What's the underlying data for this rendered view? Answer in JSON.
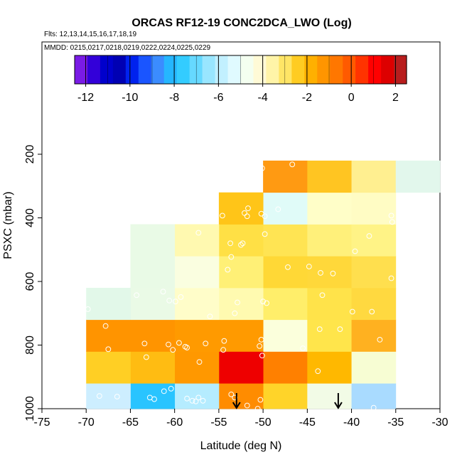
{
  "chart_data": {
    "type": "heatmap",
    "title": "ORCAS RF12-19 CONC2DCA_LWO (Log)",
    "flights_label": "Flts: 12,13,14,15,16,17,18,19",
    "dates_label": "MMDD: 0215,0217,0218,0219,0222,0224,0225,0229",
    "xlabel": "Latitude (deg N)",
    "ylabel": "PSXC (mbar)",
    "xlim": [
      -75,
      -30
    ],
    "ylim": [
      1000,
      50
    ],
    "x_ticks": [
      -75,
      -70,
      -65,
      -60,
      -55,
      -50,
      -45,
      -40,
      -35,
      -30
    ],
    "x_tick_labels": [
      "-75",
      "-70",
      "-65",
      "-60",
      "-55",
      "-50",
      "-45",
      "-40",
      "-35",
      "-30"
    ],
    "y_ticks": [
      200,
      400,
      600,
      800,
      1000
    ],
    "y_tick_labels": [
      "200",
      "400",
      "600",
      "800",
      "1000"
    ],
    "colorbar": {
      "range": [
        -12.5,
        2.5
      ],
      "ticks": [
        -12,
        -10,
        -8,
        -6,
        -4,
        -2,
        0,
        2
      ],
      "tick_labels": [
        "-12",
        "-10",
        "-8",
        "-6",
        "-4",
        "-2",
        "0",
        "2"
      ],
      "colors": [
        "#7a1be6",
        "#3300d9",
        "#0000cc",
        "#0000b3",
        "#0022ee",
        "#1a55ff",
        "#3b8cff",
        "#25b6ff",
        "#33ccff",
        "#66d9ff",
        "#99e6ff",
        "#c2f0ff",
        "#e0faff",
        "#f4fff0",
        "#fffad6",
        "#fff4a8",
        "#ffe566",
        "#ffcc22",
        "#ffb000",
        "#ff9500",
        "#ff7700",
        "#ff5a00",
        "#ff3300",
        "#ff0000",
        "#dd0000",
        "#b81d1d"
      ]
    },
    "cells": [
      {
        "x": [
          -50,
          -45
        ],
        "y": [
          920,
          1000
        ],
        "v": -2.0,
        "color": "#ffd429"
      },
      {
        "x": [
          -50,
          -45
        ],
        "y": [
          820,
          920
        ],
        "v": -1.5,
        "color": "#ff8000"
      },
      {
        "x": [
          -50,
          -45
        ],
        "y": [
          720,
          820
        ],
        "v": -4.0,
        "color": "#fbffdc"
      },
      {
        "x": [
          -50,
          -45
        ],
        "y": [
          620,
          720
        ],
        "v": -2.8,
        "color": "#ffee6a"
      },
      {
        "x": [
          -50,
          -45
        ],
        "y": [
          520,
          620
        ],
        "v": -2.5,
        "color": "#ffd836"
      },
      {
        "x": [
          -50,
          -45
        ],
        "y": [
          420,
          520
        ],
        "v": -2.7,
        "color": "#ffe453"
      },
      {
        "x": [
          -50,
          -45
        ],
        "y": [
          320,
          420
        ],
        "v": -4.8,
        "color": "#e0fbf8"
      },
      {
        "x": [
          -50,
          -45
        ],
        "y": [
          220,
          320
        ],
        "v": -1.5,
        "color": "#ff9a12"
      },
      {
        "x": [
          -55,
          -50
        ],
        "y": [
          920,
          1000
        ],
        "v": -1.5,
        "color": "#ff8c00"
      },
      {
        "x": [
          -55,
          -50
        ],
        "y": [
          820,
          920
        ],
        "v": 0.2,
        "color": "#ee0000"
      },
      {
        "x": [
          -55,
          -50
        ],
        "y": [
          720,
          820
        ],
        "v": -1.8,
        "color": "#ff9a00"
      },
      {
        "x": [
          -55,
          -50
        ],
        "y": [
          620,
          720
        ],
        "v": -3.3,
        "color": "#fffab0"
      },
      {
        "x": [
          -55,
          -50
        ],
        "y": [
          520,
          620
        ],
        "v": -2.9,
        "color": "#fff076"
      },
      {
        "x": [
          -55,
          -50
        ],
        "y": [
          420,
          520
        ],
        "v": -2.6,
        "color": "#ffe045"
      },
      {
        "x": [
          -55,
          -50
        ],
        "y": [
          320,
          420
        ],
        "v": -2.3,
        "color": "#ffc518"
      },
      {
        "x": [
          -60,
          -55
        ],
        "y": [
          920,
          1000
        ],
        "v": -6.5,
        "color": "#b5ecff"
      },
      {
        "x": [
          -60,
          -55
        ],
        "y": [
          820,
          920
        ],
        "v": -1.7,
        "color": "#ff9800"
      },
      {
        "x": [
          -60,
          -55
        ],
        "y": [
          720,
          820
        ],
        "v": -1.8,
        "color": "#ff9a00"
      },
      {
        "x": [
          -60,
          -55
        ],
        "y": [
          620,
          720
        ],
        "v": -3.6,
        "color": "#fffdc9"
      },
      {
        "x": [
          -60,
          -55
        ],
        "y": [
          520,
          620
        ],
        "v": -3.7,
        "color": "#fafee0"
      },
      {
        "x": [
          -60,
          -55
        ],
        "y": [
          420,
          520
        ],
        "v": -3.2,
        "color": "#fff9b0"
      },
      {
        "x": [
          -65,
          -60
        ],
        "y": [
          920,
          1000
        ],
        "v": -7.5,
        "color": "#29c4ff"
      },
      {
        "x": [
          -65,
          -60
        ],
        "y": [
          820,
          920
        ],
        "v": -2.1,
        "color": "#ffbc12"
      },
      {
        "x": [
          -65,
          -60
        ],
        "y": [
          720,
          820
        ],
        "v": -1.6,
        "color": "#ff9400"
      },
      {
        "x": [
          -65,
          -60
        ],
        "y": [
          620,
          720
        ],
        "v": -4.6,
        "color": "#eafae6"
      },
      {
        "x": [
          -65,
          -60
        ],
        "y": [
          520,
          620
        ],
        "v": -4.7,
        "color": "#e9fae6"
      },
      {
        "x": [
          -65,
          -60
        ],
        "y": [
          420,
          520
        ],
        "v": -4.8,
        "color": "#e9fae6"
      },
      {
        "x": [
          -70,
          -65
        ],
        "y": [
          920,
          1000
        ],
        "v": -6.0,
        "color": "#cdeeff"
      },
      {
        "x": [
          -70,
          -65
        ],
        "y": [
          820,
          920
        ],
        "v": -2.4,
        "color": "#ffcf24"
      },
      {
        "x": [
          -70,
          -65
        ],
        "y": [
          720,
          820
        ],
        "v": -1.6,
        "color": "#ff9400"
      },
      {
        "x": [
          -70,
          -65
        ],
        "y": [
          620,
          720
        ],
        "v": -4.9,
        "color": "#e2f8e9"
      },
      {
        "x": [
          -45,
          -40
        ],
        "y": [
          920,
          1000
        ],
        "v": -4.4,
        "color": "#f2fbe6"
      },
      {
        "x": [
          -45,
          -40
        ],
        "y": [
          820,
          920
        ],
        "v": -2.0,
        "color": "#ffb800"
      },
      {
        "x": [
          -45,
          -40
        ],
        "y": [
          720,
          820
        ],
        "v": -2.6,
        "color": "#ffe54b"
      },
      {
        "x": [
          -45,
          -40
        ],
        "y": [
          620,
          720
        ],
        "v": -2.6,
        "color": "#ffe34a"
      },
      {
        "x": [
          -45,
          -40
        ],
        "y": [
          520,
          620
        ],
        "v": -2.5,
        "color": "#ffd83a"
      },
      {
        "x": [
          -45,
          -40
        ],
        "y": [
          420,
          520
        ],
        "v": -3.0,
        "color": "#fff07a"
      },
      {
        "x": [
          -45,
          -40
        ],
        "y": [
          320,
          420
        ],
        "v": -3.6,
        "color": "#fffec8"
      },
      {
        "x": [
          -45,
          -40
        ],
        "y": [
          220,
          320
        ],
        "v": -2.2,
        "color": "#ffc522"
      },
      {
        "x": [
          -40,
          -35
        ],
        "y": [
          920,
          1000
        ],
        "v": -6.4,
        "color": "#a9dbff"
      },
      {
        "x": [
          -40,
          -35
        ],
        "y": [
          820,
          920
        ],
        "v": -3.6,
        "color": "#f7fdd3"
      },
      {
        "x": [
          -40,
          -35
        ],
        "y": [
          720,
          820
        ],
        "v": -2.0,
        "color": "#ffb120"
      },
      {
        "x": [
          -40,
          -35
        ],
        "y": [
          620,
          720
        ],
        "v": -2.5,
        "color": "#ffd940"
      },
      {
        "x": [
          -40,
          -35
        ],
        "y": [
          520,
          620
        ],
        "v": -2.7,
        "color": "#ffdf4e"
      },
      {
        "x": [
          -40,
          -35
        ],
        "y": [
          420,
          520
        ],
        "v": -3.1,
        "color": "#fff386"
      },
      {
        "x": [
          -40,
          -35
        ],
        "y": [
          320,
          420
        ],
        "v": -3.5,
        "color": "#fffcc4"
      },
      {
        "x": [
          -40,
          -35
        ],
        "y": [
          220,
          320
        ],
        "v": -3.0,
        "color": "#ffef90"
      },
      {
        "x": [
          -35,
          -30
        ],
        "y": [
          220,
          320
        ],
        "v": -4.9,
        "color": "#e2f7ec"
      }
    ],
    "points": [
      {
        "lat": -68.5,
        "p": 960
      },
      {
        "lat": -66.5,
        "p": 962
      },
      {
        "lat": -62.8,
        "p": 965
      },
      {
        "lat": -62.3,
        "p": 970
      },
      {
        "lat": -61.2,
        "p": 945
      },
      {
        "lat": -60.4,
        "p": 937
      },
      {
        "lat": -58.6,
        "p": 968
      },
      {
        "lat": -58.0,
        "p": 975
      },
      {
        "lat": -57.6,
        "p": 977
      },
      {
        "lat": -56.8,
        "p": 975
      },
      {
        "lat": -57.3,
        "p": 965
      },
      {
        "lat": -53.6,
        "p": 955
      },
      {
        "lat": -53.2,
        "p": 965
      },
      {
        "lat": -51.8,
        "p": 990
      },
      {
        "lat": -50.3,
        "p": 972
      },
      {
        "lat": -50.6,
        "p": 1000
      },
      {
        "lat": -37.5,
        "p": 997
      },
      {
        "lat": -67.5,
        "p": 813
      },
      {
        "lat": -63.2,
        "p": 838
      },
      {
        "lat": -60.7,
        "p": 798
      },
      {
        "lat": -60.2,
        "p": 815
      },
      {
        "lat": -58.8,
        "p": 805
      },
      {
        "lat": -57.2,
        "p": 853
      },
      {
        "lat": -54.5,
        "p": 815
      },
      {
        "lat": -50.4,
        "p": 803
      },
      {
        "lat": -50.1,
        "p": 833
      },
      {
        "lat": -43.8,
        "p": 882
      },
      {
        "lat": -67.8,
        "p": 740
      },
      {
        "lat": -63.4,
        "p": 795
      },
      {
        "lat": -59.5,
        "p": 793
      },
      {
        "lat": -58.6,
        "p": 808
      },
      {
        "lat": -56.5,
        "p": 795
      },
      {
        "lat": -54.4,
        "p": 787
      },
      {
        "lat": -50.2,
        "p": 783
      },
      {
        "lat": -45.5,
        "p": 810
      },
      {
        "lat": -43.6,
        "p": 750
      },
      {
        "lat": -41.3,
        "p": 750
      },
      {
        "lat": -36.8,
        "p": 783
      },
      {
        "lat": -69.8,
        "p": 687
      },
      {
        "lat": -64.3,
        "p": 643
      },
      {
        "lat": -61.3,
        "p": 632
      },
      {
        "lat": -60.6,
        "p": 660
      },
      {
        "lat": -59.9,
        "p": 663
      },
      {
        "lat": -59.3,
        "p": 649
      },
      {
        "lat": -56.0,
        "p": 710
      },
      {
        "lat": -53.2,
        "p": 700
      },
      {
        "lat": -52.9,
        "p": 666
      },
      {
        "lat": -50.0,
        "p": 663
      },
      {
        "lat": -49.6,
        "p": 668
      },
      {
        "lat": -43.3,
        "p": 643
      },
      {
        "lat": -39.9,
        "p": 695
      },
      {
        "lat": -37.7,
        "p": 695
      },
      {
        "lat": -57.3,
        "p": 447
      },
      {
        "lat": -54.0,
        "p": 563
      },
      {
        "lat": -53.6,
        "p": 523
      },
      {
        "lat": -53.7,
        "p": 480
      },
      {
        "lat": -52.5,
        "p": 485
      },
      {
        "lat": -52.3,
        "p": 480
      },
      {
        "lat": -49.8,
        "p": 451
      },
      {
        "lat": -47.2,
        "p": 555
      },
      {
        "lat": -44.8,
        "p": 553
      },
      {
        "lat": -43.5,
        "p": 573
      },
      {
        "lat": -42.1,
        "p": 575
      },
      {
        "lat": -39.6,
        "p": 505
      },
      {
        "lat": -38.0,
        "p": 457
      },
      {
        "lat": -35.5,
        "p": 590
      },
      {
        "lat": -54.6,
        "p": 393
      },
      {
        "lat": -52.1,
        "p": 385
      },
      {
        "lat": -51.8,
        "p": 395
      },
      {
        "lat": -51.7,
        "p": 370
      },
      {
        "lat": -50.2,
        "p": 387
      },
      {
        "lat": -49.8,
        "p": 395
      },
      {
        "lat": -48.3,
        "p": 373
      },
      {
        "lat": -35.5,
        "p": 393
      },
      {
        "lat": -35.4,
        "p": 413
      },
      {
        "lat": -50.1,
        "p": 244
      },
      {
        "lat": -46.7,
        "p": 232
      },
      {
        "lat": -34.7,
        "p": 212
      }
    ],
    "arrows": [
      {
        "lat": -53.0
      },
      {
        "lat": -41.5
      }
    ]
  }
}
